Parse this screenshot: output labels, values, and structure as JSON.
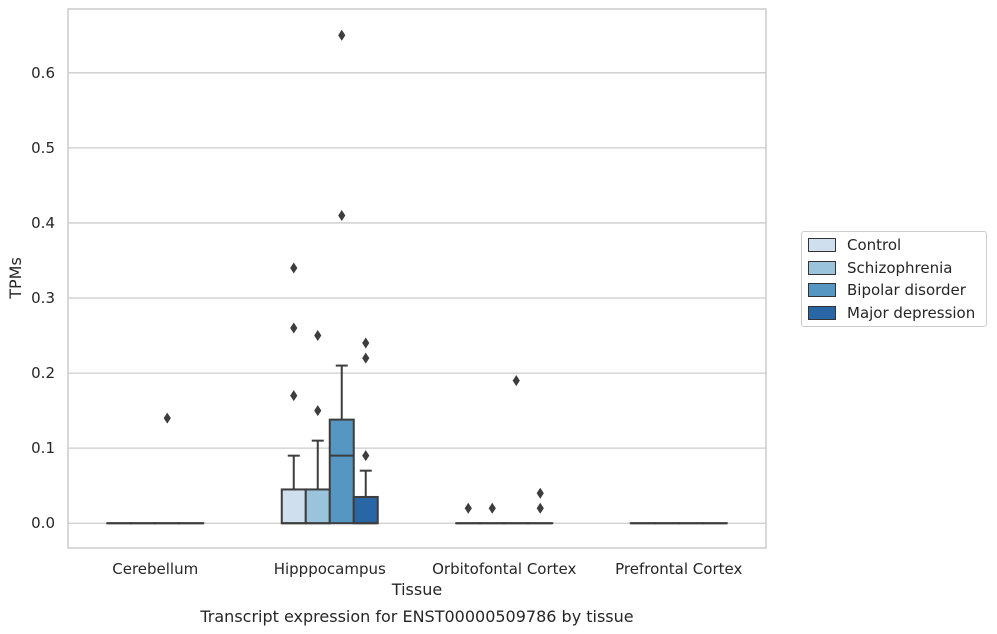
{
  "chart_data": {
    "type": "boxplot",
    "title": "Transcript expression for ENST00000509786 by tissue",
    "xlabel": "Tissue",
    "ylabel": "TPMs",
    "ylim": [
      -0.033,
      0.685
    ],
    "yticks": [
      "0.0",
      "0.1",
      "0.2",
      "0.3",
      "0.4",
      "0.5",
      "0.6"
    ],
    "ytick_values": [
      0,
      0.1,
      0.2,
      0.3,
      0.4,
      0.5,
      0.6
    ],
    "grid": true,
    "legend_position": "right-center",
    "categories": [
      "Cerebellum",
      "Hipppocampus",
      "Orbitofontal Cortex",
      "Prefrontal Cortex"
    ],
    "series": [
      {
        "name": "Control",
        "color": "#d0dfee",
        "boxes": [
          {
            "q1": 0,
            "median": 0,
            "q3": 0,
            "whislo": 0,
            "whishi": 0,
            "fliers": []
          },
          {
            "q1": 0,
            "median": 0,
            "q3": 0.045,
            "whislo": 0,
            "whishi": 0.09,
            "fliers": [
              0.17,
              0.26,
              0.34
            ]
          },
          {
            "q1": 0,
            "median": 0,
            "q3": 0,
            "whislo": 0,
            "whishi": 0,
            "fliers": [
              0.02
            ]
          },
          {
            "q1": 0,
            "median": 0,
            "q3": 0,
            "whislo": 0,
            "whishi": 0,
            "fliers": []
          }
        ]
      },
      {
        "name": "Schizophrenia",
        "color": "#9ac4db",
        "boxes": [
          {
            "q1": 0,
            "median": 0,
            "q3": 0,
            "whislo": 0,
            "whishi": 0,
            "fliers": []
          },
          {
            "q1": 0,
            "median": 0,
            "q3": 0.045,
            "whislo": 0,
            "whishi": 0.11,
            "fliers": [
              0.15,
              0.25
            ]
          },
          {
            "q1": 0,
            "median": 0,
            "q3": 0,
            "whislo": 0,
            "whishi": 0,
            "fliers": [
              0.02
            ]
          },
          {
            "q1": 0,
            "median": 0,
            "q3": 0,
            "whislo": 0,
            "whishi": 0,
            "fliers": []
          }
        ]
      },
      {
        "name": "Bipolar disorder",
        "color": "#5596c3",
        "boxes": [
          {
            "q1": 0,
            "median": 0,
            "q3": 0,
            "whislo": 0,
            "whishi": 0,
            "fliers": [
              0.14
            ]
          },
          {
            "q1": 0,
            "median": 0.09,
            "q3": 0.138,
            "whislo": 0,
            "whishi": 0.21,
            "fliers": [
              0.41,
              0.65
            ]
          },
          {
            "q1": 0,
            "median": 0,
            "q3": 0,
            "whislo": 0,
            "whishi": 0,
            "fliers": [
              0.19
            ]
          },
          {
            "q1": 0,
            "median": 0,
            "q3": 0,
            "whislo": 0,
            "whishi": 0,
            "fliers": []
          }
        ]
      },
      {
        "name": "Major depression",
        "color": "#2866a6",
        "boxes": [
          {
            "q1": 0,
            "median": 0,
            "q3": 0,
            "whislo": 0,
            "whishi": 0,
            "fliers": []
          },
          {
            "q1": 0,
            "median": 0,
            "q3": 0.035,
            "whislo": 0,
            "whishi": 0.07,
            "fliers": [
              0.09,
              0.22,
              0.24
            ]
          },
          {
            "q1": 0,
            "median": 0,
            "q3": 0,
            "whislo": 0,
            "whishi": 0,
            "fliers": [
              0.02,
              0.04
            ]
          },
          {
            "q1": 0,
            "median": 0,
            "q3": 0,
            "whislo": 0,
            "whishi": 0,
            "fliers": []
          }
        ]
      }
    ]
  }
}
